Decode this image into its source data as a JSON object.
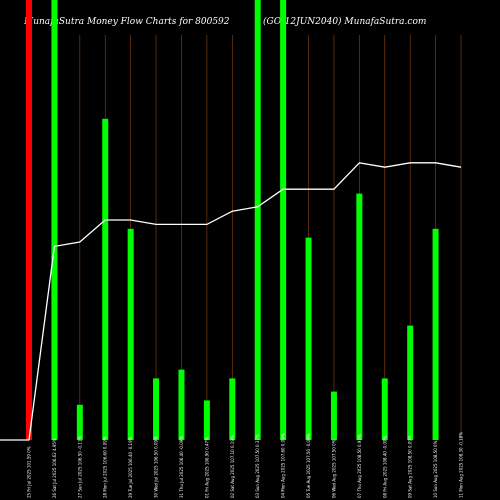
{
  "header": {
    "title": "MunafaSutra  Money Flow  Charts for 800592",
    "subtitle": "(GOI12JUN2040) MunafaSutra.com"
  },
  "colors": {
    "background": "#000000",
    "positive": "#00ff00",
    "negative": "#ff0000",
    "line": "#ffffff",
    "grid": "#8b4513"
  },
  "chart_data": {
    "type": "bar",
    "title": "MunafaSutra  Money Flow  Charts for 800592",
    "subtitle": "(GOI12JUN2040) MunafaSutra.com",
    "xlabel": "",
    "ylabel": "",
    "ylim": [
      0,
      100
    ],
    "grid": true,
    "categories": [
      "25 Fri Jul 2025 101.59 0%",
      "26 Sat Jul 2025 106.62 4.95%",
      "27 Sun Jul 2025 106.50 -0.11%",
      "28 Mon Jul 2025 106.60 0.09%",
      "29 Tue Jul 2025 106.40 -0.19%",
      "30 Wed Jul 2025 106.50 0.09%",
      "31 Thu Jul 2025 106.40 -0.09%",
      "01 Fri Aug 2025 106.90 0.47%",
      "02 Sat Aug 2025 107.10 0.19%",
      "03 Sun Aug 2025 107.50 0.37%",
      "04 Mon Aug 2025 107.60 0.09%",
      "05 Tue Aug 2025 107.50 -0.09%",
      "06 Wed Aug 2025 107.50 0%",
      "07 Thu Aug 2025 108.50 0.93%",
      "08 Fri Aug 2025 108.40 -0.09%",
      "09 Sat Aug 2025 108.50 0.09%",
      "10 Sun Aug 2025 108.50 0%",
      "11 Mon Aug 2025 108.30 -0.18%"
    ],
    "series": [
      {
        "values": [
          100,
          100,
          8,
          73,
          48,
          14,
          16,
          9,
          14,
          100,
          100,
          46,
          11,
          56,
          14,
          26,
          48,
          0
        ],
        "colors": [
          "negative",
          "positive",
          "positive",
          "positive",
          "positive",
          "positive",
          "positive",
          "positive",
          "positive",
          "positive",
          "positive",
          "positive",
          "positive",
          "positive",
          "positive",
          "positive",
          "positive",
          "positive"
        ]
      },
      {
        "values": [
          0,
          44,
          45,
          50,
          50,
          49,
          49,
          49,
          52,
          53,
          57,
          57,
          57,
          63,
          62,
          63,
          63,
          62
        ]
      }
    ]
  }
}
